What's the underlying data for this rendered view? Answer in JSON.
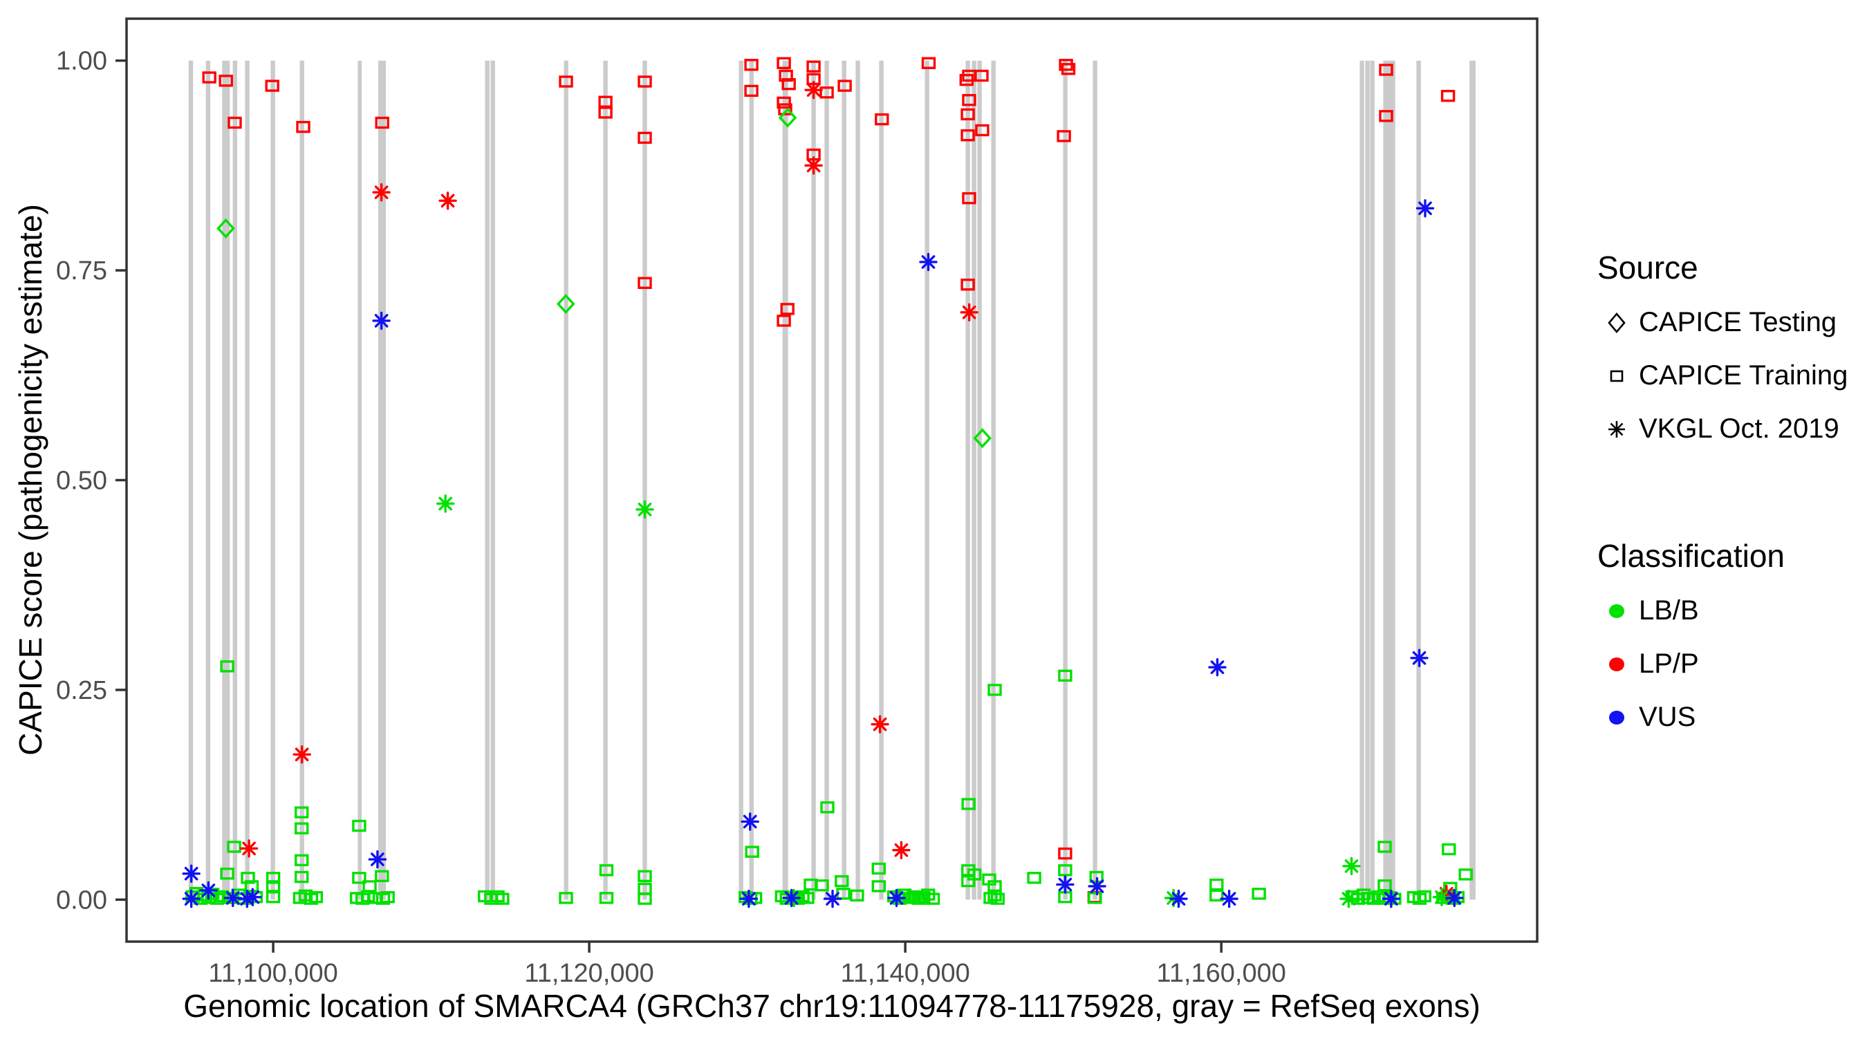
{
  "chart_data": {
    "type": "scatter",
    "title": "",
    "xlabel": "Genomic location of SMARCA4 (GRCh37 chr19:11094778-11175928, gray = RefSeq exons)",
    "ylabel": "CAPICE score (pathogenicity estimate)",
    "x_domain": [
      11090720,
      11179990
    ],
    "y_domain": [
      -0.05,
      1.05
    ],
    "grid": "off",
    "x_ticks": [
      {
        "v": 11100000,
        "label": "11,100,000"
      },
      {
        "v": 11120000,
        "label": "11,120,000"
      },
      {
        "v": 11140000,
        "label": "11,140,000"
      },
      {
        "v": 11160000,
        "label": "11,160,000"
      }
    ],
    "y_ticks": [
      {
        "v": 0.0,
        "label": "0.00"
      },
      {
        "v": 0.25,
        "label": "0.25"
      },
      {
        "v": 0.5,
        "label": "0.50"
      },
      {
        "v": 0.75,
        "label": "0.75"
      },
      {
        "v": 1.0,
        "label": "1.00"
      }
    ],
    "colors": {
      "g": "#00E100",
      "r": "#FF0000",
      "b": "#1212F2"
    },
    "exon_color": "#CBCBCB",
    "axis_text_color": "#4D4D4D",
    "panel_border_color": "#333333",
    "legend": {
      "source_title": "Source",
      "source_codes": {
        "d": "CAPICE Testing",
        "s": "CAPICE Training",
        "a": "VKGL Oct. 2019"
      },
      "source_items": [
        {
          "glyph": "diamond",
          "label": "CAPICE Testing"
        },
        {
          "glyph": "square",
          "label": "CAPICE Training"
        },
        {
          "glyph": "asterisk",
          "label": "VKGL Oct. 2019"
        }
      ],
      "class_title": "Classification",
      "class_codes": {
        "g": "LB/B",
        "r": "LP/P",
        "b": "VUS"
      },
      "class_items": [
        {
          "label": "LB/B",
          "color": "#00E100"
        },
        {
          "label": "LP/P",
          "color": "#FF0000"
        },
        {
          "label": "VUS",
          "color": "#1212F2"
        }
      ]
    },
    "exons_note": "gray vertical bars span score 0 to 1; format [bp_center, bp_width]",
    "exons": [
      [
        11094790,
        280
      ],
      [
        11095880,
        280
      ],
      [
        11097010,
        480
      ],
      [
        11097580,
        280
      ],
      [
        11098360,
        280
      ],
      [
        11099980,
        280
      ],
      [
        11101820,
        280
      ],
      [
        11105480,
        250
      ],
      [
        11106890,
        480
      ],
      [
        11113550,
        280
      ],
      [
        11113900,
        280
      ],
      [
        11118540,
        280
      ],
      [
        11121030,
        280
      ],
      [
        11123520,
        280
      ],
      [
        11129610,
        280
      ],
      [
        11130270,
        280
      ],
      [
        11132410,
        350
      ],
      [
        11134200,
        280
      ],
      [
        11135030,
        280
      ],
      [
        11136130,
        280
      ],
      [
        11137000,
        280
      ],
      [
        11138490,
        280
      ],
      [
        11141380,
        280
      ],
      [
        11143960,
        280
      ],
      [
        11144350,
        280
      ],
      [
        11144700,
        280
      ],
      [
        11145580,
        280
      ],
      [
        11150130,
        280
      ],
      [
        11152010,
        280
      ],
      [
        11168900,
        280
      ],
      [
        11169250,
        280
      ],
      [
        11169560,
        280
      ],
      [
        11170390,
        280
      ],
      [
        11170610,
        280
      ],
      [
        11170870,
        280
      ],
      [
        11172490,
        280
      ],
      [
        11175900,
        380
      ]
    ],
    "points_note": "format [genomic_bp, capice_score, source(d=testing diamond, s=training square, a=VKGL asterisk), class(g=LB/B, r=LP/P, b=VUS)]",
    "points": [
      [
        11097000,
        0.8,
        "d",
        "g"
      ],
      [
        11118520,
        0.71,
        "d",
        "g"
      ],
      [
        11132560,
        0.932,
        "d",
        "g"
      ],
      [
        11144880,
        0.55,
        "d",
        "g"
      ],
      [
        11095960,
        0.98,
        "s",
        "r"
      ],
      [
        11097010,
        0.976,
        "s",
        "r"
      ],
      [
        11099940,
        0.97,
        "s",
        "r"
      ],
      [
        11097570,
        0.926,
        "s",
        "r"
      ],
      [
        11101900,
        0.921,
        "s",
        "r"
      ],
      [
        11106900,
        0.926,
        "s",
        "r"
      ],
      [
        11118530,
        0.975,
        "s",
        "r"
      ],
      [
        11121030,
        0.951,
        "s",
        "r"
      ],
      [
        11121030,
        0.938,
        "s",
        "r"
      ],
      [
        11123520,
        0.975,
        "s",
        "r"
      ],
      [
        11123520,
        0.908,
        "s",
        "r"
      ],
      [
        11123520,
        0.735,
        "s",
        "r"
      ],
      [
        11130260,
        0.995,
        "s",
        "r"
      ],
      [
        11130260,
        0.964,
        "s",
        "r"
      ],
      [
        11132320,
        0.997,
        "s",
        "r"
      ],
      [
        11132450,
        0.982,
        "s",
        "r"
      ],
      [
        11132630,
        0.972,
        "s",
        "r"
      ],
      [
        11132320,
        0.95,
        "s",
        "r"
      ],
      [
        11132400,
        0.942,
        "s",
        "r"
      ],
      [
        11132540,
        0.704,
        "s",
        "r"
      ],
      [
        11132320,
        0.69,
        "s",
        "r"
      ],
      [
        11134200,
        0.993,
        "s",
        "r"
      ],
      [
        11134200,
        0.978,
        "s",
        "r"
      ],
      [
        11134200,
        0.888,
        "s",
        "r"
      ],
      [
        11135030,
        0.962,
        "s",
        "r"
      ],
      [
        11136170,
        0.97,
        "s",
        "r"
      ],
      [
        11138520,
        0.93,
        "s",
        "r"
      ],
      [
        11141480,
        0.997,
        "s",
        "r"
      ],
      [
        11144040,
        0.982,
        "s",
        "r"
      ],
      [
        11144830,
        0.982,
        "s",
        "r"
      ],
      [
        11143880,
        0.977,
        "s",
        "r"
      ],
      [
        11144040,
        0.953,
        "s",
        "r"
      ],
      [
        11143960,
        0.936,
        "s",
        "r"
      ],
      [
        11143960,
        0.911,
        "s",
        "r"
      ],
      [
        11144870,
        0.917,
        "s",
        "r"
      ],
      [
        11144040,
        0.836,
        "s",
        "r"
      ],
      [
        11143960,
        0.733,
        "s",
        "r"
      ],
      [
        11150170,
        0.995,
        "s",
        "r"
      ],
      [
        11150320,
        0.99,
        "s",
        "r"
      ],
      [
        11150040,
        0.91,
        "s",
        "r"
      ],
      [
        11150120,
        0.055,
        "s",
        "r"
      ],
      [
        11151980,
        0.003,
        "s",
        "r"
      ],
      [
        11170430,
        0.989,
        "s",
        "r"
      ],
      [
        11170430,
        0.934,
        "s",
        "r"
      ],
      [
        11174350,
        0.958,
        "s",
        "r"
      ],
      [
        11097090,
        0.278,
        "s",
        "g"
      ],
      [
        11145660,
        0.25,
        "s",
        "g"
      ],
      [
        11150120,
        0.267,
        "s",
        "g"
      ],
      [
        11135070,
        0.11,
        "s",
        "g"
      ],
      [
        11144000,
        0.114,
        "s",
        "g"
      ],
      [
        11101800,
        0.104,
        "s",
        "g"
      ],
      [
        11101800,
        0.085,
        "s",
        "g"
      ],
      [
        11101800,
        0.047,
        "s",
        "g"
      ],
      [
        11101800,
        0.027,
        "s",
        "g"
      ],
      [
        11105440,
        0.088,
        "s",
        "g"
      ],
      [
        11097530,
        0.063,
        "s",
        "g"
      ],
      [
        11130310,
        0.057,
        "s",
        "g"
      ],
      [
        11170340,
        0.063,
        "s",
        "g"
      ],
      [
        11174400,
        0.06,
        "s",
        "g"
      ],
      [
        11175470,
        0.03,
        "s",
        "g"
      ],
      [
        11097090,
        0.031,
        "s",
        "g"
      ],
      [
        11098400,
        0.026,
        "s",
        "g"
      ],
      [
        11098640,
        0.016,
        "s",
        "g"
      ],
      [
        11100000,
        0.026,
        "s",
        "g"
      ],
      [
        11100000,
        0.016,
        "s",
        "g"
      ],
      [
        11100000,
        0.003,
        "s",
        "g"
      ],
      [
        11105440,
        0.026,
        "s",
        "g"
      ],
      [
        11106100,
        0.016,
        "s",
        "g"
      ],
      [
        11106880,
        0.028,
        "s",
        "g"
      ],
      [
        11121090,
        0.035,
        "s",
        "g"
      ],
      [
        11123520,
        0.028,
        "s",
        "g"
      ],
      [
        11123520,
        0.013,
        "s",
        "g"
      ],
      [
        11134020,
        0.018,
        "s",
        "g"
      ],
      [
        11134720,
        0.017,
        "s",
        "g"
      ],
      [
        11135980,
        0.022,
        "s",
        "g"
      ],
      [
        11136080,
        0.007,
        "s",
        "g"
      ],
      [
        11136950,
        0.005,
        "s",
        "g"
      ],
      [
        11138320,
        0.037,
        "s",
        "g"
      ],
      [
        11138320,
        0.016,
        "s",
        "g"
      ],
      [
        11143990,
        0.035,
        "s",
        "g"
      ],
      [
        11143990,
        0.022,
        "s",
        "g"
      ],
      [
        11144380,
        0.03,
        "s",
        "g"
      ],
      [
        11145310,
        0.024,
        "s",
        "g"
      ],
      [
        11145660,
        0.016,
        "s",
        "g"
      ],
      [
        11145660,
        0.005,
        "s",
        "g"
      ],
      [
        11148160,
        0.026,
        "s",
        "g"
      ],
      [
        11150120,
        0.035,
        "s",
        "g"
      ],
      [
        11150120,
        0.003,
        "s",
        "g"
      ],
      [
        11152100,
        0.027,
        "s",
        "g"
      ],
      [
        11159700,
        0.018,
        "s",
        "g"
      ],
      [
        11159700,
        0.005,
        "s",
        "g"
      ],
      [
        11162380,
        0.007,
        "s",
        "g"
      ],
      [
        11170340,
        0.017,
        "s",
        "g"
      ],
      [
        11174490,
        0.014,
        "s",
        "g"
      ],
      [
        11094900,
        0.004,
        "s",
        "g"
      ],
      [
        11095150,
        0.008,
        "s",
        "g"
      ],
      [
        11095400,
        0.001,
        "s",
        "g"
      ],
      [
        11095650,
        0.005,
        "s",
        "g"
      ],
      [
        11095900,
        0.002,
        "s",
        "g"
      ],
      [
        11096150,
        0.007,
        "s",
        "g"
      ],
      [
        11096450,
        0.001,
        "s",
        "g"
      ],
      [
        11096750,
        0.004,
        "s",
        "g"
      ],
      [
        11097300,
        0.002,
        "s",
        "g"
      ],
      [
        11097800,
        0.006,
        "s",
        "g"
      ],
      [
        11098150,
        0.001,
        "s",
        "g"
      ],
      [
        11098900,
        0.003,
        "s",
        "g"
      ],
      [
        11101700,
        0.002,
        "s",
        "g"
      ],
      [
        11102050,
        0.005,
        "s",
        "g"
      ],
      [
        11102400,
        0.001,
        "s",
        "g"
      ],
      [
        11102700,
        0.003,
        "s",
        "g"
      ],
      [
        11105300,
        0.002,
        "s",
        "g"
      ],
      [
        11105650,
        0.001,
        "s",
        "g"
      ],
      [
        11106000,
        0.004,
        "s",
        "g"
      ],
      [
        11106450,
        0.002,
        "s",
        "g"
      ],
      [
        11106950,
        0.001,
        "s",
        "g"
      ],
      [
        11107250,
        0.003,
        "s",
        "g"
      ],
      [
        11113400,
        0.004,
        "s",
        "g"
      ],
      [
        11113800,
        0.001,
        "s",
        "g"
      ],
      [
        11114200,
        0.004,
        "s",
        "g"
      ],
      [
        11114500,
        0.001,
        "s",
        "g"
      ],
      [
        11118530,
        0.002,
        "s",
        "g"
      ],
      [
        11121090,
        0.002,
        "s",
        "g"
      ],
      [
        11123520,
        0.001,
        "s",
        "g"
      ],
      [
        11129900,
        0.003,
        "s",
        "g"
      ],
      [
        11130200,
        0.001,
        "s",
        "g"
      ],
      [
        11130500,
        0.002,
        "s",
        "g"
      ],
      [
        11132200,
        0.004,
        "s",
        "g"
      ],
      [
        11132500,
        0.001,
        "s",
        "g"
      ],
      [
        11132900,
        0.003,
        "s",
        "g"
      ],
      [
        11133200,
        0.001,
        "s",
        "g"
      ],
      [
        11133500,
        0.004,
        "s",
        "g"
      ],
      [
        11133800,
        0.002,
        "s",
        "g"
      ],
      [
        11139300,
        0.004,
        "s",
        "g"
      ],
      [
        11139650,
        0.001,
        "s",
        "g"
      ],
      [
        11139950,
        0.006,
        "s",
        "g"
      ],
      [
        11140250,
        0.002,
        "s",
        "g"
      ],
      [
        11140550,
        0.004,
        "s",
        "g"
      ],
      [
        11140850,
        0.001,
        "s",
        "g"
      ],
      [
        11141150,
        0.003,
        "s",
        "g"
      ],
      [
        11141450,
        0.006,
        "s",
        "g"
      ],
      [
        11141750,
        0.001,
        "s",
        "g"
      ],
      [
        11145400,
        0.002,
        "s",
        "g"
      ],
      [
        11145850,
        0.001,
        "s",
        "g"
      ],
      [
        11152000,
        0.002,
        "s",
        "g"
      ],
      [
        11168300,
        0.004,
        "s",
        "g"
      ],
      [
        11168650,
        0.001,
        "s",
        "g"
      ],
      [
        11169000,
        0.006,
        "s",
        "g"
      ],
      [
        11169300,
        0.002,
        "s",
        "g"
      ],
      [
        11169650,
        0.001,
        "s",
        "g"
      ],
      [
        11169950,
        0.004,
        "s",
        "g"
      ],
      [
        11170250,
        0.001,
        "s",
        "g"
      ],
      [
        11170650,
        0.003,
        "s",
        "g"
      ],
      [
        11170950,
        0.001,
        "s",
        "g"
      ],
      [
        11172200,
        0.003,
        "s",
        "g"
      ],
      [
        11172550,
        0.001,
        "s",
        "g"
      ],
      [
        11172850,
        0.004,
        "s",
        "g"
      ],
      [
        11174050,
        0.002,
        "s",
        "g"
      ],
      [
        11174350,
        0.005,
        "s",
        "g"
      ],
      [
        11174650,
        0.001,
        "s",
        "g"
      ],
      [
        11174950,
        0.003,
        "s",
        "g"
      ],
      [
        11106850,
        0.843,
        "a",
        "r"
      ],
      [
        11111050,
        0.833,
        "a",
        "r"
      ],
      [
        11134200,
        0.965,
        "a",
        "r"
      ],
      [
        11134200,
        0.875,
        "a",
        "r"
      ],
      [
        11144050,
        0.7,
        "a",
        "r"
      ],
      [
        11138400,
        0.209,
        "a",
        "r"
      ],
      [
        11101820,
        0.173,
        "a",
        "r"
      ],
      [
        11098470,
        0.061,
        "a",
        "r"
      ],
      [
        11139750,
        0.059,
        "a",
        "r"
      ],
      [
        11174250,
        0.007,
        "a",
        "r"
      ],
      [
        11110900,
        0.472,
        "a",
        "g"
      ],
      [
        11123520,
        0.465,
        "a",
        "g"
      ],
      [
        11168240,
        0.04,
        "a",
        "g"
      ],
      [
        11132950,
        0.002,
        "a",
        "g"
      ],
      [
        11156980,
        0.002,
        "a",
        "g"
      ],
      [
        11168060,
        0.001,
        "a",
        "g"
      ],
      [
        11173950,
        0.003,
        "a",
        "g"
      ],
      [
        11106850,
        0.69,
        "a",
        "b"
      ],
      [
        11141460,
        0.76,
        "a",
        "b"
      ],
      [
        11172900,
        0.824,
        "a",
        "b"
      ],
      [
        11159750,
        0.277,
        "a",
        "b"
      ],
      [
        11172530,
        0.288,
        "a",
        "b"
      ],
      [
        11130180,
        0.093,
        "a",
        "b"
      ],
      [
        11094820,
        0.031,
        "a",
        "b"
      ],
      [
        11095900,
        0.011,
        "a",
        "b"
      ],
      [
        11106600,
        0.048,
        "a",
        "b"
      ],
      [
        11150120,
        0.018,
        "a",
        "b"
      ],
      [
        11152140,
        0.016,
        "a",
        "b"
      ],
      [
        11094820,
        0.001,
        "a",
        "b"
      ],
      [
        11097450,
        0.002,
        "a",
        "b"
      ],
      [
        11098350,
        0.001,
        "a",
        "b"
      ],
      [
        11098700,
        0.003,
        "a",
        "b"
      ],
      [
        11130100,
        0.001,
        "a",
        "b"
      ],
      [
        11132800,
        0.002,
        "a",
        "b"
      ],
      [
        11135400,
        0.001,
        "a",
        "b"
      ],
      [
        11139450,
        0.002,
        "a",
        "b"
      ],
      [
        11157300,
        0.001,
        "a",
        "b"
      ],
      [
        11160500,
        0.001,
        "a",
        "b"
      ],
      [
        11170750,
        0.001,
        "a",
        "b"
      ],
      [
        11174750,
        0.002,
        "a",
        "b"
      ]
    ]
  }
}
